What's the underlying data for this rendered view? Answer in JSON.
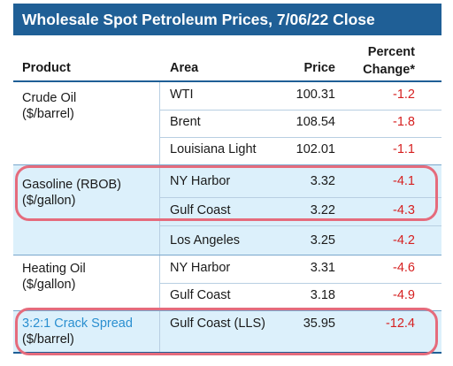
{
  "title": "Wholesale Spot Petroleum Prices, 7/06/22 Close",
  "columns": {
    "product": "Product",
    "area": "Area",
    "price": "Price",
    "change_line1": "Percent",
    "change_line2": "Change*"
  },
  "groups": [
    {
      "product_name": "Crude Oil",
      "product_unit": "($/barrel)",
      "rows": [
        {
          "area": "WTI",
          "price": "100.31",
          "change": "-1.2"
        },
        {
          "area": "Brent",
          "price": "108.54",
          "change": "-1.8"
        },
        {
          "area": "Louisiana Light",
          "price": "102.01",
          "change": "-1.1"
        }
      ]
    },
    {
      "product_name": "Gasoline (RBOB)",
      "product_unit": "($/gallon)",
      "rows": [
        {
          "area": "NY Harbor",
          "price": "3.32",
          "change": "-4.1"
        },
        {
          "area": "Gulf Coast",
          "price": "3.22",
          "change": "-4.3"
        },
        {
          "area": "Los Angeles",
          "price": "3.25",
          "change": "-4.2"
        }
      ]
    },
    {
      "product_name": "Heating Oil",
      "product_unit": "($/gallon)",
      "rows": [
        {
          "area": "NY Harbor",
          "price": "3.31",
          "change": "-4.6"
        },
        {
          "area": "Gulf Coast",
          "price": "3.18",
          "change": "-4.9"
        }
      ]
    },
    {
      "product_name": "3:2:1 Crack Spread",
      "product_unit": "($/barrel)",
      "rows": [
        {
          "area": "Gulf Coast (LLS)",
          "price": "35.95",
          "change": "-12.4"
        }
      ]
    }
  ],
  "colors": {
    "title_bg": "#1f5f96",
    "shaded_row": "#dcf0fb",
    "negative": "#d62020",
    "link": "#2a8fd0",
    "highlight_outline": "#e56b7c"
  }
}
